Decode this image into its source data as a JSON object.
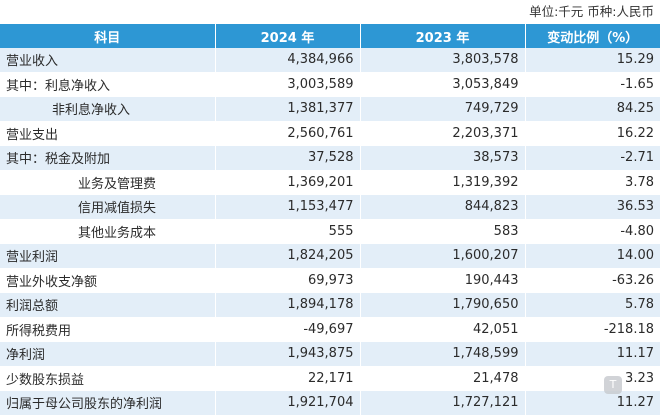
{
  "unit_note": "单位:千元   币种:人民币",
  "headers": [
    "科目",
    "2024 年",
    "2023 年",
    "变动比例（%）"
  ],
  "rows": [
    {
      "label": "营业收入",
      "v2024": "4,384,966",
      "v2023": "3,803,578",
      "change": "15.29"
    },
    {
      "label": "其中：利息净收入",
      "v2024": "3,003,589",
      "v2023": "3,053,849",
      "change": "-1.65"
    },
    {
      "label": "非利息净收入",
      "v2024": "1,381,377",
      "v2023": "749,729",
      "change": "84.25"
    },
    {
      "label": "营业支出",
      "v2024": "2,560,761",
      "v2023": "2,203,371",
      "change": "16.22"
    },
    {
      "label": "其中：税金及附加",
      "v2024": "37,528",
      "v2023": "38,573",
      "change": "-2.71"
    },
    {
      "label": "业务及管理费",
      "v2024": "1,369,201",
      "v2023": "1,319,392",
      "change": "3.78"
    },
    {
      "label": "信用减值损失",
      "v2024": "1,153,477",
      "v2023": "844,823",
      "change": "36.53"
    },
    {
      "label": "其他业务成本",
      "v2024": "555",
      "v2023": "583",
      "change": "-4.80"
    },
    {
      "label": "营业利润",
      "v2024": "1,824,205",
      "v2023": "1,600,207",
      "change": "14.00"
    },
    {
      "label": "营业外收支净额",
      "v2024": "69,973",
      "v2023": "190,443",
      "change": "-63.26"
    },
    {
      "label": "利润总额",
      "v2024": "1,894,178",
      "v2023": "1,790,650",
      "change": "5.78"
    },
    {
      "label": "所得税费用",
      "v2024": "-49,697",
      "v2023": "42,051",
      "change": "-218.18"
    },
    {
      "label": "净利润",
      "v2024": "1,943,875",
      "v2023": "1,748,599",
      "change": "11.17"
    },
    {
      "label": "少数股东损益",
      "v2024": "22,171",
      "v2023": "21,478",
      "change": "3.23"
    },
    {
      "label": "归属于母公司股东的净利润",
      "v2024": "1,921,704",
      "v2023": "1,727,121",
      "change": "11.27"
    }
  ],
  "badge_icon": "T"
}
